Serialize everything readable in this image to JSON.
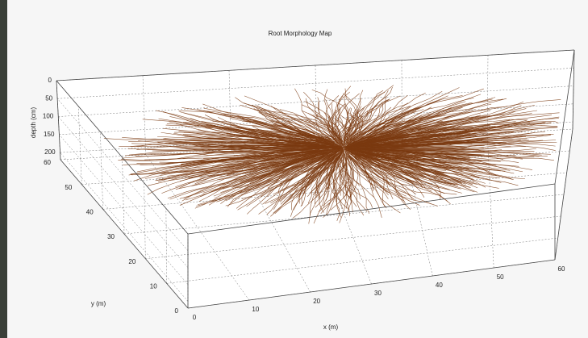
{
  "chart_data": {
    "type": "line3d",
    "title": "Root Morphology Map",
    "xlabel": "x (m)",
    "ylabel": "y (m)",
    "zlabel": "depth (cm)",
    "xlim": [
      0,
      60
    ],
    "xticks": [
      0,
      10,
      20,
      30,
      40,
      50,
      60
    ],
    "ylim": [
      0,
      60
    ],
    "yticks": [
      0,
      10,
      20,
      30,
      40,
      50,
      60
    ],
    "zlim": [
      0,
      220
    ],
    "zticks": [
      0,
      50,
      100,
      150,
      200
    ],
    "grid": true,
    "color": "#7a3a10"
  }
}
